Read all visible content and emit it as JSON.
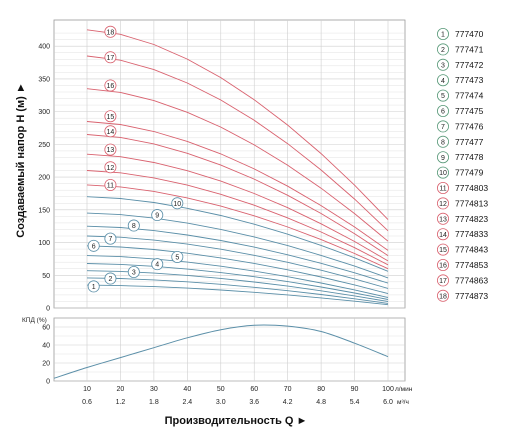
{
  "chart_data": [
    {
      "type": "line",
      "ylabel": "Создаваемый напор H (м) ►",
      "ylim": [
        0,
        440
      ],
      "yticks": [
        "0",
        "50",
        "100",
        "150",
        "200",
        "250",
        "300",
        "350",
        "400"
      ],
      "xlim": [
        0,
        100
      ],
      "grid": true,
      "colors": {
        "blue_series": "#5b8fa8",
        "red_series": "#d9626f",
        "grid": "#cfcfcf"
      },
      "curve_points_x": [
        10,
        20,
        30,
        40,
        50,
        60,
        70,
        80,
        90,
        100
      ],
      "series": [
        {
          "name": "777470",
          "shutoff_head": 35,
          "end_head": 5,
          "color": "blue"
        },
        {
          "name": "777471",
          "shutoff_head": 46,
          "end_head": 7,
          "color": "blue"
        },
        {
          "name": "777472",
          "shutoff_head": 57,
          "end_head": 10,
          "color": "blue"
        },
        {
          "name": "777473",
          "shutoff_head": 68,
          "end_head": 13,
          "color": "blue"
        },
        {
          "name": "777474",
          "shutoff_head": 80,
          "end_head": 16,
          "color": "blue"
        },
        {
          "name": "777475",
          "shutoff_head": 95,
          "end_head": 22,
          "color": "blue"
        },
        {
          "name": "777476",
          "shutoff_head": 110,
          "end_head": 30,
          "color": "blue"
        },
        {
          "name": "777477",
          "shutoff_head": 125,
          "end_head": 38,
          "color": "blue"
        },
        {
          "name": "777478",
          "shutoff_head": 145,
          "end_head": 46,
          "color": "blue"
        },
        {
          "name": "777479",
          "shutoff_head": 170,
          "end_head": 56,
          "color": "blue"
        },
        {
          "name": "7774803",
          "shutoff_head": 188,
          "end_head": 60,
          "color": "red"
        },
        {
          "name": "7774813",
          "shutoff_head": 210,
          "end_head": 66,
          "color": "red"
        },
        {
          "name": "7774823",
          "shutoff_head": 235,
          "end_head": 72,
          "color": "red"
        },
        {
          "name": "7774833",
          "shutoff_head": 265,
          "end_head": 80,
          "color": "red"
        },
        {
          "name": "7774843",
          "shutoff_head": 285,
          "end_head": 88,
          "color": "red"
        },
        {
          "name": "7774853",
          "shutoff_head": 335,
          "end_head": 102,
          "color": "red"
        },
        {
          "name": "7774863",
          "shutoff_head": 385,
          "end_head": 118,
          "color": "red"
        },
        {
          "name": "7774873",
          "shutoff_head": 425,
          "end_head": 135,
          "color": "red"
        }
      ],
      "curve_labels": [
        {
          "label": "1",
          "x": 2,
          "y": 33
        },
        {
          "label": "2",
          "x": 7,
          "y": 45
        },
        {
          "label": "3",
          "x": 14,
          "y": 55
        },
        {
          "label": "4",
          "x": 21,
          "y": 67
        },
        {
          "label": "5",
          "x": 27,
          "y": 78
        },
        {
          "label": "6",
          "x": 2,
          "y": 95
        },
        {
          "label": "7",
          "x": 7,
          "y": 106
        },
        {
          "label": "8",
          "x": 14,
          "y": 126
        },
        {
          "label": "9",
          "x": 21,
          "y": 142
        },
        {
          "label": "10",
          "x": 27,
          "y": 160
        },
        {
          "label": "11",
          "x": 7,
          "y": 188
        },
        {
          "label": "12",
          "x": 7,
          "y": 215
        },
        {
          "label": "13",
          "x": 7,
          "y": 242
        },
        {
          "label": "14",
          "x": 7,
          "y": 270
        },
        {
          "label": "15",
          "x": 7,
          "y": 293
        },
        {
          "label": "16",
          "x": 7,
          "y": 340
        },
        {
          "label": "17",
          "x": 7,
          "y": 383
        },
        {
          "label": "18",
          "x": 7,
          "y": 422
        }
      ]
    },
    {
      "type": "line",
      "ylabel": "КПД (%)",
      "ylim": [
        0,
        70
      ],
      "yticks": [
        "0",
        "20",
        "40",
        "60"
      ],
      "xlim": [
        0,
        100
      ],
      "grid": true,
      "series": [
        {
          "x": [
            0,
            10,
            20,
            30,
            40,
            50,
            60,
            70,
            80,
            90,
            100
          ],
          "y": [
            3,
            15,
            26,
            37,
            48,
            57,
            62,
            61,
            55,
            42,
            27
          ]
        }
      ]
    }
  ],
  "x_axis": {
    "title": "Производительность Q ►",
    "lpm_ticks": [
      "10",
      "20",
      "30",
      "40",
      "50",
      "60",
      "70",
      "80",
      "90",
      "100"
    ],
    "lpm_unit": "л/мин",
    "m3h_ticks": [
      "0.6",
      "1.2",
      "1.8",
      "2.4",
      "3.0",
      "3.6",
      "4.2",
      "4.8",
      "5.4",
      "6.0"
    ],
    "m3h_unit": "м³/ч"
  }
}
